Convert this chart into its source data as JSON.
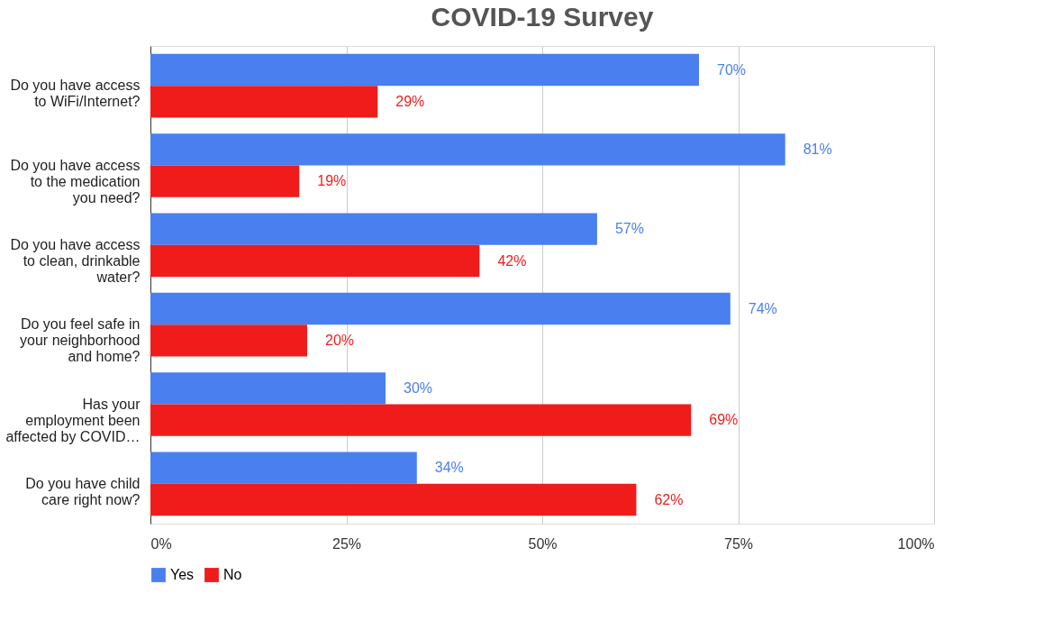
{
  "chart_data": {
    "type": "bar",
    "orientation": "horizontal",
    "title": "COVID-19 Survey",
    "categories": [
      "Do you have access\nto WiFi/Internet?",
      "Do you have access\nto the medication\nyou need?",
      "Do you have access\nto clean, drinkable\nwater?",
      "Do you feel safe in\nyour neighborhood\nand home?",
      "Has your\nemployment been\naffected by COVID…",
      "Do you have child\ncare right now?"
    ],
    "series": [
      {
        "name": "Yes",
        "color": "#4a7ff0",
        "values": [
          70,
          81,
          57,
          74,
          30,
          34
        ],
        "value_labels": [
          "70%",
          "81%",
          "57%",
          "74%",
          "30%",
          "34%"
        ]
      },
      {
        "name": "No",
        "color": "#f01c1c",
        "values": [
          29,
          19,
          42,
          20,
          69,
          62
        ],
        "value_labels": [
          "29%",
          "19%",
          "42%",
          "20%",
          "69%",
          "62%"
        ]
      }
    ],
    "xlim": [
      0,
      100
    ],
    "xticks": [
      {
        "value": 0,
        "label": "0%"
      },
      {
        "value": 25,
        "label": "25%"
      },
      {
        "value": 50,
        "label": "50%"
      },
      {
        "value": 75,
        "label": "75%"
      },
      {
        "value": 100,
        "label": "100%"
      }
    ],
    "grid": "x",
    "legend": "bottom"
  }
}
